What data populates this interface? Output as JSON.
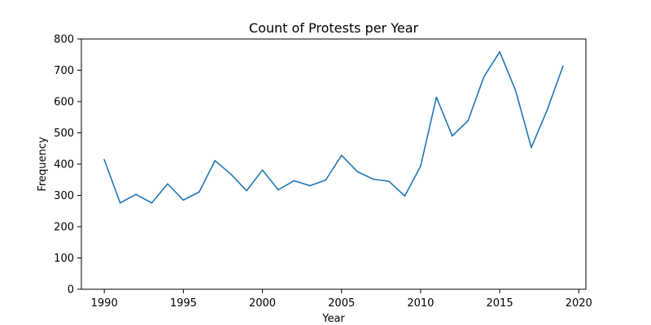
{
  "chart_data": {
    "type": "line",
    "title": "Count of Protests per Year",
    "xlabel": "Year",
    "ylabel": "Frequency",
    "xlim": [
      1988.55,
      2020.45
    ],
    "ylim": [
      0,
      800
    ],
    "xticks": [
      1990,
      1995,
      2000,
      2005,
      2010,
      2015,
      2020
    ],
    "yticks": [
      0,
      100,
      200,
      300,
      400,
      500,
      600,
      700,
      800
    ],
    "grid": false,
    "legend": "none",
    "series": [
      {
        "color": "#1f77b4",
        "x": [
          1990,
          1991,
          1992,
          1993,
          1994,
          1995,
          1996,
          1997,
          1998,
          1999,
          2000,
          2001,
          2002,
          2003,
          2004,
          2005,
          2006,
          2007,
          2008,
          2009,
          2010,
          2011,
          2012,
          2013,
          2014,
          2015,
          2016,
          2017,
          2018,
          2019
        ],
        "y": [
          414,
          276,
          303,
          276,
          337,
          285,
          311,
          411,
          368,
          315,
          381,
          318,
          347,
          331,
          349,
          428,
          376,
          352,
          345,
          298,
          394,
          614,
          490,
          539,
          679,
          759,
          636,
          453,
          573,
          713
        ]
      }
    ]
  }
}
